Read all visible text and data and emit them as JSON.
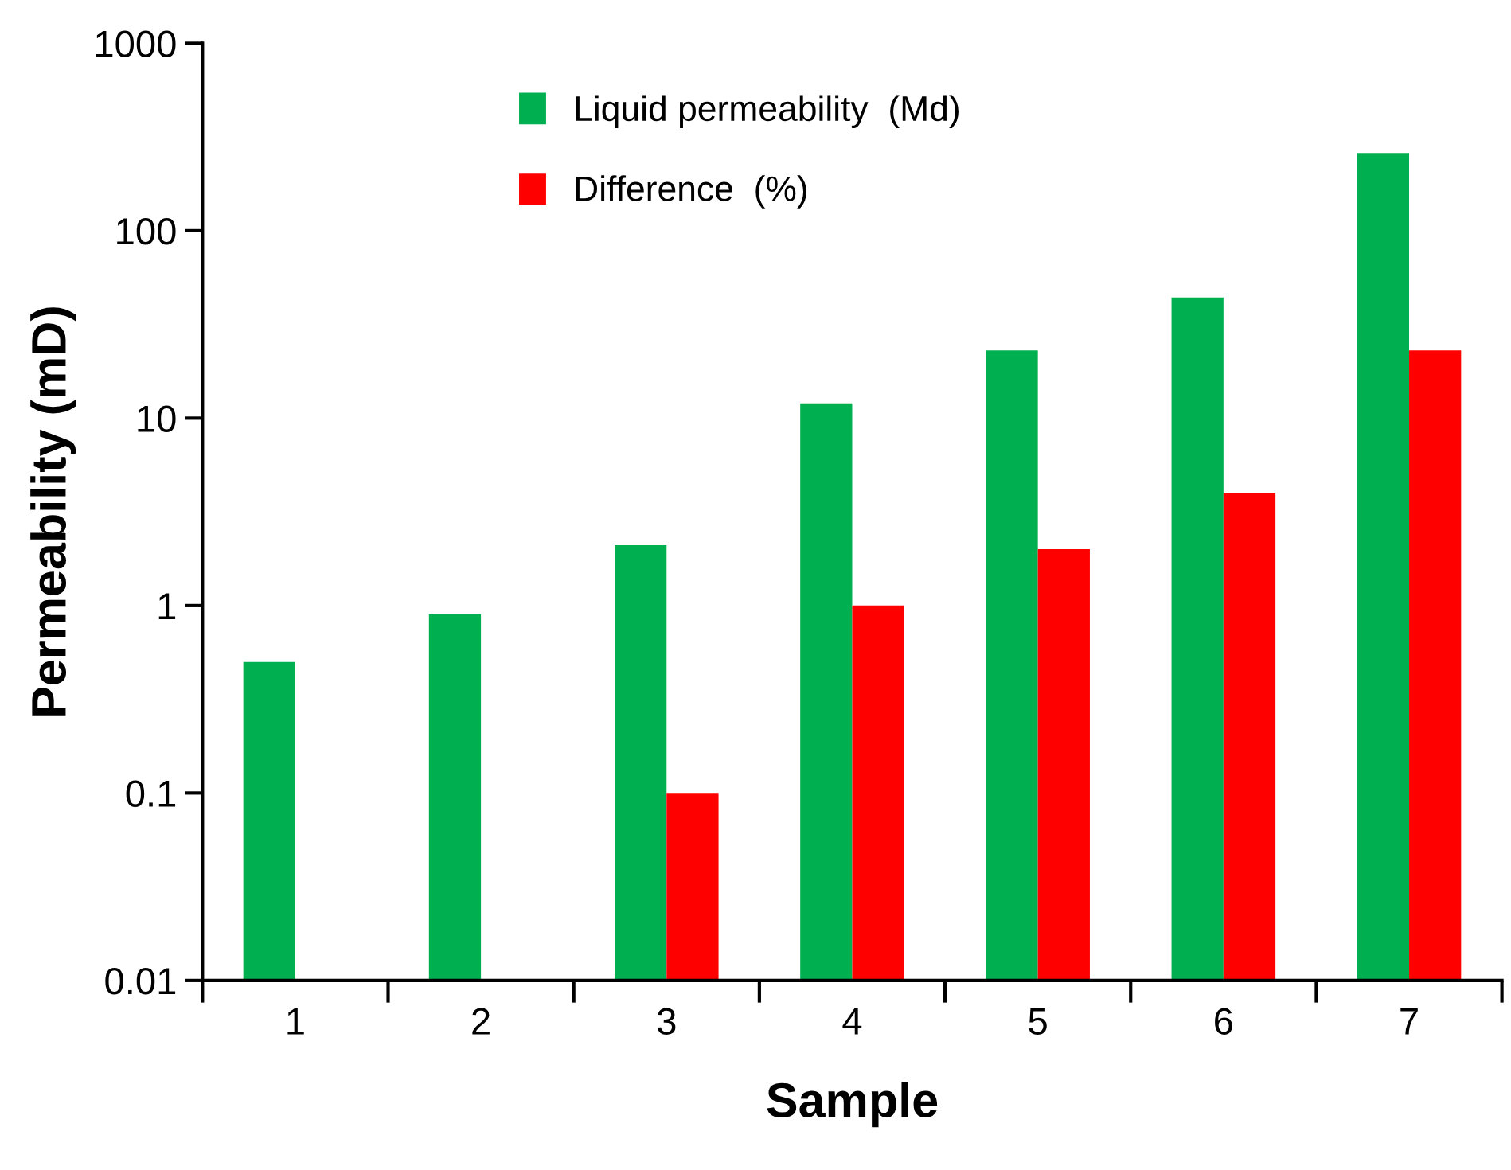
{
  "chart_data": {
    "type": "bar",
    "xlabel": "Sample",
    "ylabel": "Permeability (mD)",
    "categories": [
      "1",
      "2",
      "3",
      "4",
      "5",
      "6",
      "7"
    ],
    "series": [
      {
        "name": "Liquid permeability  (Md)",
        "color": "#00b050",
        "values": [
          0.5,
          0.9,
          2.1,
          12,
          23,
          44,
          260
        ]
      },
      {
        "name": "Difference  (%)",
        "color": "#ff0000",
        "values": [
          null,
          null,
          0.1,
          1,
          2,
          4,
          23
        ]
      }
    ],
    "log": true,
    "ylim": [
      0.01,
      1000
    ],
    "yticks": [
      0.01,
      0.1,
      1,
      10,
      100,
      1000
    ],
    "legend": "top",
    "grid": false
  }
}
